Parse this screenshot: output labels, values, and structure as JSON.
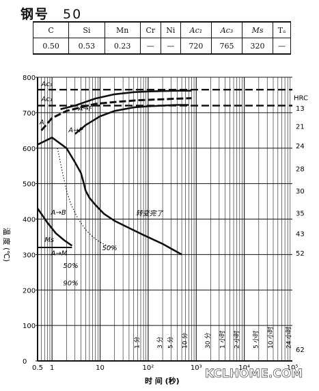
{
  "heading": {
    "label": "钢号",
    "grade": "50"
  },
  "composition": {
    "headers": [
      "C",
      "Si",
      "Mn",
      "Cr",
      "Ni",
      "Ac₁",
      "Ac₃",
      "Ms",
      "Tₐ"
    ],
    "italic": [
      false,
      false,
      false,
      false,
      false,
      true,
      true,
      true,
      false
    ],
    "values": [
      "0.50",
      "0.53",
      "0.23",
      "—",
      "—",
      "720",
      "765",
      "320",
      "—"
    ]
  },
  "watermark": "KCLHOME.COM",
  "chart_data": {
    "type": "line",
    "xlabel": "时 间 (秒)",
    "ylabel": "温 度 (℃)",
    "xscale": "log",
    "xlim": [
      0.5,
      100000
    ],
    "ylim": [
      0,
      800
    ],
    "x_tick_labels": [
      {
        "x": 0.5,
        "label": "0.5"
      },
      {
        "x": 1,
        "label": "1"
      },
      {
        "x": 10,
        "label": "10"
      },
      {
        "x": 100,
        "label": "10²"
      },
      {
        "x": 1000,
        "label": "10³"
      },
      {
        "x": 10000,
        "label": "10⁴"
      },
      {
        "x": 100000,
        "label": "10⁵"
      }
    ],
    "y_ticks": [
      0,
      100,
      200,
      300,
      400,
      500,
      600,
      700,
      800
    ],
    "time_markers": [
      {
        "x": 60,
        "label": "1 分"
      },
      {
        "x": 180,
        "label": "3 分"
      },
      {
        "x": 300,
        "label": "5 分"
      },
      {
        "x": 600,
        "label": "10 分"
      },
      {
        "x": 1800,
        "label": "30 分"
      },
      {
        "x": 3600,
        "label": "1 小时"
      },
      {
        "x": 7200,
        "label": "2 小时"
      },
      {
        "x": 18000,
        "label": "5 小时"
      },
      {
        "x": 36000,
        "label": "10 小时"
      },
      {
        "x": 86400,
        "label": "24 小时"
      }
    ],
    "hrc": {
      "title": "HRC",
      "marks": [
        {
          "y": 713,
          "label": "13"
        },
        {
          "y": 662,
          "label": "21"
        },
        {
          "y": 607,
          "label": "24"
        },
        {
          "y": 543,
          "label": "28"
        },
        {
          "y": 480,
          "label": "30"
        },
        {
          "y": 417,
          "label": "35"
        },
        {
          "y": 360,
          "label": "43"
        },
        {
          "y": 305,
          "label": "52"
        },
        {
          "y": 33,
          "label": "62"
        }
      ]
    },
    "reference_lines": [
      {
        "name": "Ac₃",
        "y": 765,
        "style": "dashed"
      },
      {
        "name": "Ac₁",
        "y": 720,
        "style": "dashed"
      },
      {
        "name": "Ms",
        "y": 320,
        "style": "solid"
      }
    ],
    "curves": [
      {
        "name": "start",
        "style": "solid",
        "x": [
          0.5,
          1,
          2,
          3,
          4,
          4.6,
          5,
          6,
          8,
          12,
          20,
          40,
          80,
          200,
          500
        ],
        "y": [
          610,
          630,
          600,
          560,
          530,
          500,
          480,
          460,
          440,
          415,
          395,
          375,
          355,
          330,
          300
        ]
      },
      {
        "name": "50%",
        "style": "dotted",
        "x": [
          1.3,
          1.6,
          2,
          2.5,
          3.5,
          5,
          7,
          10,
          14,
          20
        ],
        "y": [
          600,
          540,
          480,
          440,
          400,
          370,
          350,
          335,
          325,
          315
        ]
      },
      {
        "name": "A→F",
        "style": "dashed",
        "x": [
          0.6,
          1,
          2,
          4,
          8,
          20,
          60,
          200,
          500,
          800
        ],
        "y": [
          650,
          685,
          705,
          715,
          725,
          730,
          735,
          738,
          740,
          741
        ]
      },
      {
        "name": "A→P",
        "style": "solid",
        "x": [
          3,
          5,
          10,
          20,
          50,
          100,
          200,
          400,
          700
        ],
        "y": [
          640,
          665,
          690,
          705,
          715,
          718,
          720,
          722,
          722
        ]
      },
      {
        "name": "A→F upper",
        "style": "solid",
        "x": [
          1.5,
          3,
          8,
          20,
          50,
          100,
          200,
          400,
          800
        ],
        "y": [
          710,
          720,
          740,
          752,
          758,
          760,
          761,
          762,
          762
        ]
      },
      {
        "name": "A→B",
        "style": "solid",
        "x": [
          0.5,
          0.8,
          1.2,
          1.8,
          2.6
        ],
        "y": [
          430,
          390,
          360,
          340,
          325
        ]
      }
    ],
    "annotations": [
      {
        "text": "Ac₃",
        "x": 0.6,
        "y": 775
      },
      {
        "text": "Ac₁",
        "x": 0.6,
        "y": 733
      },
      {
        "text": "A",
        "x": 0.55,
        "y": 667
      },
      {
        "text": "A→F",
        "x": 3.5,
        "y": 706
      },
      {
        "text": "A→P",
        "x": 2.2,
        "y": 645
      },
      {
        "text": "转变完了",
        "x": 55,
        "y": 410
      },
      {
        "text": "A→B",
        "x": 0.95,
        "y": 413
      },
      {
        "text": "Ms",
        "x": 0.7,
        "y": 335
      },
      {
        "text": "A→M",
        "x": 0.95,
        "y": 298
      },
      {
        "text": "50%",
        "x": 11,
        "y": 312
      },
      {
        "text": "50%",
        "x": 1.7,
        "y": 262
      },
      {
        "text": "90%",
        "x": 1.7,
        "y": 213
      }
    ]
  }
}
